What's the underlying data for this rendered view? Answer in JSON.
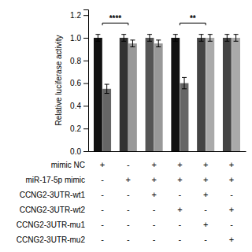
{
  "chart_data": {
    "type": "bar",
    "y_label": "Relative luciferase activity",
    "categories": [
      null,
      null,
      null,
      null,
      null,
      null
    ],
    "series": [
      {
        "values": [
          1.0,
          1.0,
          1.0,
          1.0,
          1.0,
          1.0
        ],
        "colors": [
          "#111111",
          "#333333",
          "#555555",
          "#111111",
          "#444444",
          "#444444"
        ],
        "errors": [
          0.03,
          0.03,
          0.03,
          0.03,
          0.03,
          0.03
        ]
      },
      {
        "values": [
          0.55,
          0.95,
          0.95,
          0.6,
          1.0,
          1.0
        ],
        "colors": [
          "#666666",
          "#999999",
          "#999999",
          "#666666",
          "#aaaaaa",
          "#aaaaaa"
        ],
        "errors": [
          0.04,
          0.03,
          0.03,
          0.05,
          0.03,
          0.03
        ]
      }
    ],
    "ylim": [
      0.0,
      1.25
    ],
    "yticks": [
      {
        "value": 0.0,
        "label": "0.0"
      },
      0.2,
      0.4,
      0.6,
      0.8,
      {
        "value": 1.0,
        "label": "1.0"
      },
      1.2
    ],
    "grid": false,
    "annotations": [
      {
        "x1": 0,
        "x2": 1,
        "y": 1.13,
        "text": "****"
      },
      {
        "x1": 3,
        "x2": 4,
        "y": 1.13,
        "text": "**"
      }
    ],
    "table": {
      "row_labels": [
        "mimic NC",
        "miR-17-5p mimic",
        "CCNG2-3UTR-wt1",
        "CCNG2-3UTR-wt2",
        "CCNG2-3UTR-mu1",
        "CCNG2-3UTR-mu2"
      ],
      "rows": [
        [
          "+",
          "-",
          "+",
          "+",
          "+",
          "+"
        ],
        [
          "-",
          "+",
          "+",
          "+",
          "+",
          "+"
        ],
        [
          "-",
          "-",
          "+",
          "-",
          "+",
          "-"
        ],
        [
          "-",
          "-",
          "-",
          "+",
          "-",
          "+"
        ],
        [
          "-",
          "-",
          "-",
          "-",
          "+",
          "-"
        ],
        [
          "-",
          "-",
          "-",
          "-",
          "-",
          "+"
        ]
      ]
    }
  }
}
